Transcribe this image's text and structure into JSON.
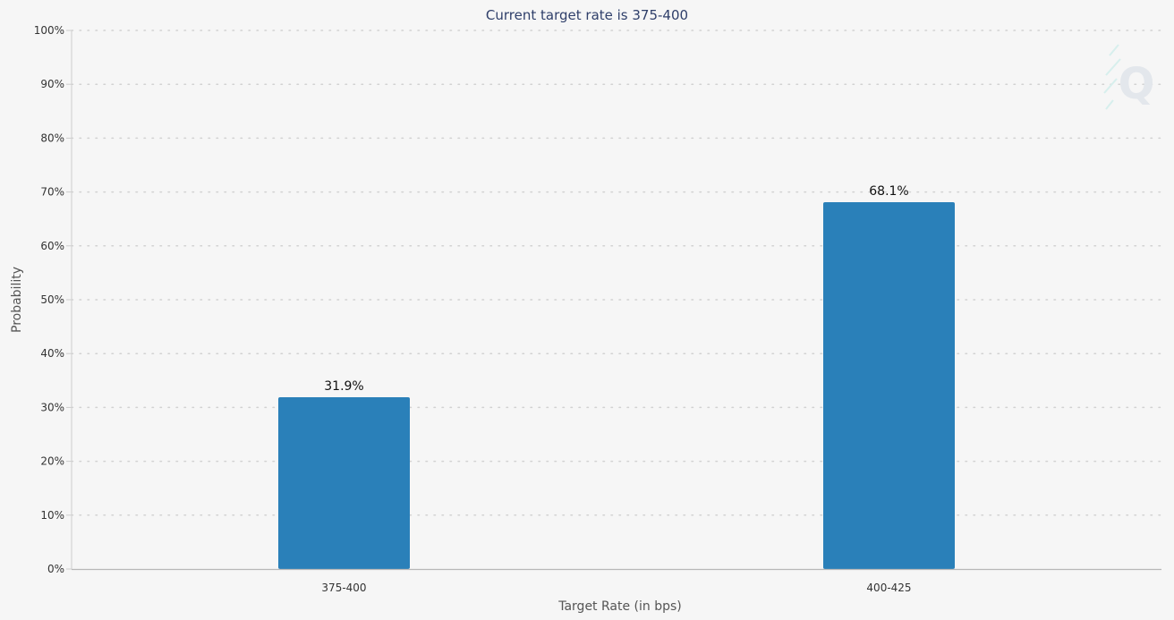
{
  "chart_data": {
    "type": "bar",
    "title": "Current target rate is 375-400",
    "xlabel": "Target Rate (in bps)",
    "ylabel": "Probability",
    "categories": [
      "375-400",
      "400-425"
    ],
    "values": [
      31.9,
      68.1
    ],
    "data_labels": [
      "31.9%",
      "68.1%"
    ],
    "ylim": [
      0,
      100
    ],
    "yticks": [
      0,
      10,
      20,
      30,
      40,
      50,
      60,
      70,
      80,
      90,
      100
    ],
    "ytick_labels": [
      "0%",
      "10%",
      "20%",
      "30%",
      "40%",
      "50%",
      "60%",
      "70%",
      "80%",
      "90%",
      "100%"
    ],
    "grid": true,
    "legend": "none",
    "bar_color": "#2a80b9"
  },
  "watermark": {
    "letter": "Q",
    "icon": "quikstrike-q-logo"
  }
}
